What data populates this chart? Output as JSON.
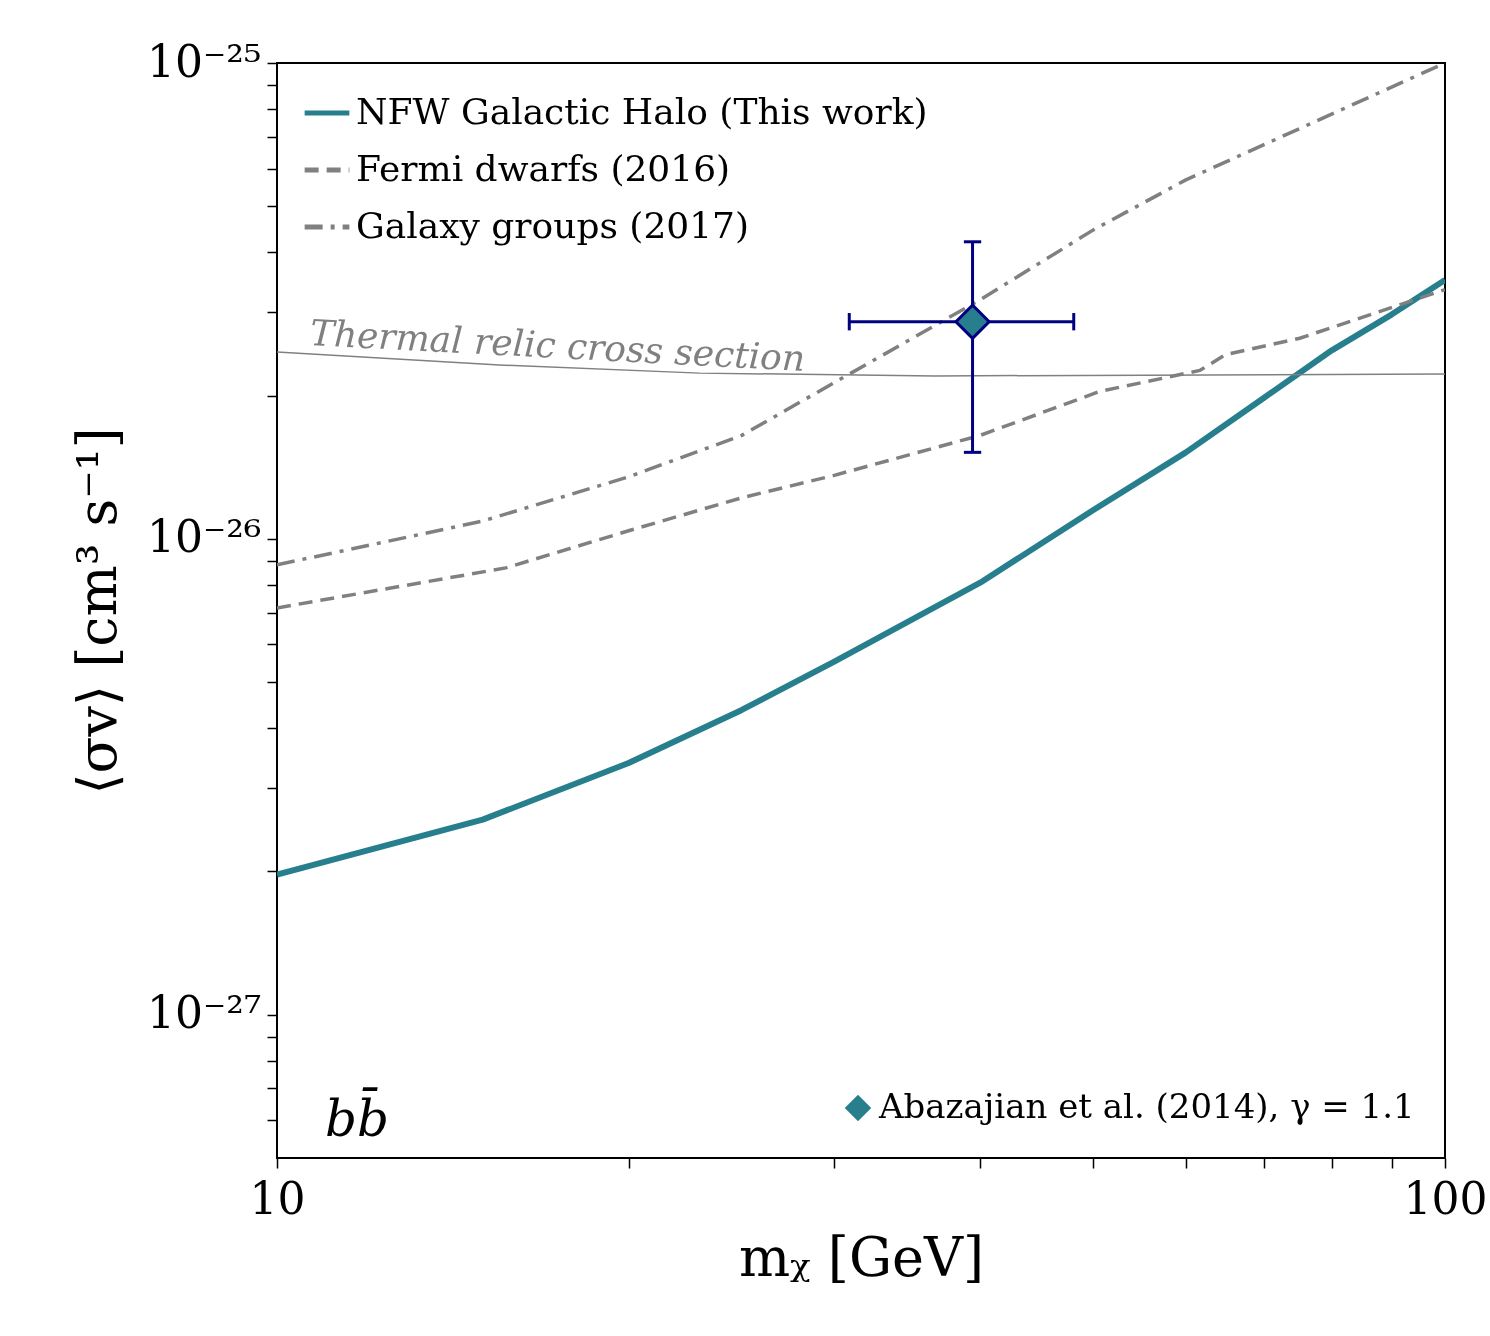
{
  "chart_data": {
    "type": "line",
    "xlabel": "mᵪ [GeV]",
    "ylabel": "⟨σv⟩ [cm³ s⁻¹]",
    "log": "xy",
    "grid": false,
    "legend": "top left",
    "xlim": [
      10,
      100
    ],
    "ylim": [
      5e-28,
      1e-25
    ],
    "xticks": [
      10,
      {
        "value": 20,
        "label": null
      },
      {
        "value": 30,
        "label": null
      },
      {
        "value": 40,
        "label": null
      },
      {
        "value": 50,
        "label": null
      },
      {
        "value": 60,
        "label": null
      },
      {
        "value": 70,
        "label": null
      },
      {
        "value": 80,
        "label": null
      },
      {
        "value": 90,
        "label": null
      },
      100
    ],
    "yticks": [
      {
        "value": 6e-28,
        "label": null
      },
      {
        "value": 7e-28,
        "label": null
      },
      {
        "value": 8e-28,
        "label": null
      },
      {
        "value": 9e-28,
        "label": null
      },
      {
        "value": 1e-27,
        "label": "10⁻²⁷"
      },
      {
        "value": 2e-27,
        "label": null
      },
      {
        "value": 3e-27,
        "label": null
      },
      {
        "value": 4e-27,
        "label": null
      },
      {
        "value": 5e-27,
        "label": null
      },
      {
        "value": 6e-27,
        "label": null
      },
      {
        "value": 7e-27,
        "label": null
      },
      {
        "value": 8e-27,
        "label": null
      },
      {
        "value": 9e-27,
        "label": null
      },
      {
        "value": 1e-26,
        "label": "10⁻²⁶"
      },
      {
        "value": 2e-26,
        "label": null
      },
      {
        "value": 3e-26,
        "label": null
      },
      {
        "value": 4e-26,
        "label": null
      },
      {
        "value": 5e-26,
        "label": null
      },
      {
        "value": 6e-26,
        "label": null
      },
      {
        "value": 7e-26,
        "label": null
      },
      {
        "value": 8e-26,
        "label": null
      },
      {
        "value": 9e-26,
        "label": null
      },
      {
        "value": 1e-25,
        "label": "10⁻²⁵"
      }
    ],
    "series": [
      {
        "name": "NFW Galactic Halo (This work)",
        "line_style": "solid",
        "color": "#277f8e",
        "x": [
          10,
          15,
          20,
          25,
          30,
          40,
          50,
          60,
          70,
          80,
          90,
          100
        ],
        "values": [
          1.97e-27,
          2.57e-27,
          3.38e-27,
          4.37e-27,
          5.52e-27,
          8.09e-27,
          1.15e-26,
          1.52e-26,
          1.98e-26,
          2.49e-26,
          2.96e-26,
          3.5e-26
        ]
      },
      {
        "name": "Fermi dwarfs (2016)",
        "line_style": "dashed",
        "color": "#808080",
        "x": [
          10,
          15.7,
          20,
          25,
          30,
          40,
          50.6,
          61.7,
          64.9,
          75.1,
          100
        ],
        "values": [
          7.16e-27,
          8.69e-27,
          1.04e-26,
          1.22e-26,
          1.36e-26,
          1.65e-26,
          2.04e-26,
          2.26e-26,
          2.44e-26,
          2.64e-26,
          3.34e-26
        ]
      },
      {
        "name": "Galaxy groups (2017)",
        "line_style": "dashdot",
        "color": "#808080",
        "x": [
          10,
          15,
          20,
          25,
          30,
          40,
          50,
          60,
          100
        ],
        "values": [
          8.82e-27,
          1.09e-26,
          1.35e-26,
          1.65e-26,
          2.13e-26,
          3.18e-26,
          4.46e-26,
          5.68e-26,
          1e-25
        ]
      },
      {
        "line_style": "solid",
        "color": "#808080",
        "x": [
          10,
          15.5,
          23,
          36.6,
          100
        ],
        "values": [
          2.47e-26,
          2.32e-26,
          2.23e-26,
          2.2e-26,
          2.22e-26
        ]
      },
      {
        "name": "Abazajian et al. (2014), γ = 1.1",
        "type": "scatter",
        "marker": "diamond",
        "color": "#277f8e",
        "x": [
          39.4
        ],
        "values": [
          2.86e-26
        ],
        "errors": [
          [
            1.52e-26,
            4.21e-26
          ]
        ],
        "xerrors": [
          [
            30.9,
            48.1
          ]
        ]
      }
    ],
    "annotations": [
      "Thermal relic cross section",
      "bb̄"
    ]
  }
}
